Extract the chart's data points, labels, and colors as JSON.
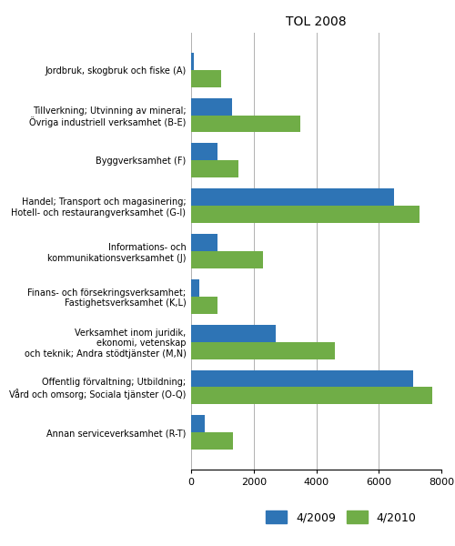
{
  "title": "TOL 2008",
  "categories": [
    "Jordbruk, skogbruk och fiske (A)",
    "Tillverkning; Utvinning av mineral;\nÖvriga industriell verksamhet (B-E)",
    "Byggverksamhet (F)",
    "Handel; Transport och magasinering;\nHotell- och restaurangverksamhet (G-I)",
    "Informations- och\nkommunikationsverksamhet (J)",
    "Finans- och försekringsverksamhet;\nFastighetsverksamhet (K,L)",
    "Verksamhet inom juridik,\nekonomi, vetenskap\noch teknik; Andra stödtjänster (M,N)",
    "Offentlig förvaltning; Utbildning;\nVård och omsorg; Sociala tjänster (O-Q)",
    "Annan serviceverksamhet (R-T)"
  ],
  "values_2009": [
    100,
    1300,
    850,
    6500,
    850,
    250,
    2700,
    7100,
    450
  ],
  "values_2010": [
    950,
    3500,
    1500,
    7300,
    2300,
    850,
    4600,
    7700,
    1350
  ],
  "color_2009": "#2E74B5",
  "color_2010": "#70AD47",
  "legend_labels": [
    "4/2009",
    "4/2010"
  ],
  "xlim": [
    0,
    8000
  ],
  "xticks": [
    0,
    2000,
    4000,
    6000,
    8000
  ],
  "bar_height": 0.38,
  "figsize": [
    5.0,
    6.0
  ]
}
